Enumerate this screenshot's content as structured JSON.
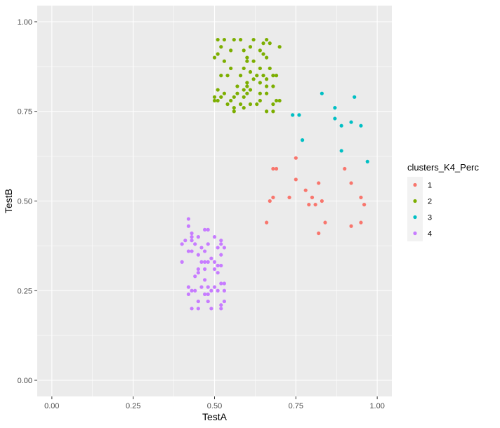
{
  "chart_data": {
    "type": "scatter",
    "title": "",
    "xlabel": "TestA",
    "ylabel": "TestB",
    "xlim": [
      -0.045,
      1.045
    ],
    "ylim": [
      -0.045,
      1.045
    ],
    "x_ticks": [
      0,
      0.25,
      0.5,
      0.75,
      1
    ],
    "x_tick_labels": [
      "0.00",
      "0.25",
      "0.50",
      "0.75",
      "1.00"
    ],
    "y_ticks": [
      0,
      0.25,
      0.5,
      0.75,
      1
    ],
    "y_tick_labels": [
      "0.00",
      "0.25",
      "0.50",
      "0.75",
      "1.00"
    ],
    "grid": true,
    "legend": {
      "title": "clusters_K4_Perc",
      "position": "right"
    },
    "series": [
      {
        "name": "1",
        "color": "#F8766D",
        "points": [
          [
            0.75,
            0.62
          ],
          [
            0.68,
            0.59
          ],
          [
            0.69,
            0.59
          ],
          [
            0.9,
            0.59
          ],
          [
            0.75,
            0.56
          ],
          [
            0.92,
            0.55
          ],
          [
            0.82,
            0.55
          ],
          [
            0.78,
            0.53
          ],
          [
            0.8,
            0.51
          ],
          [
            0.95,
            0.51
          ],
          [
            0.68,
            0.51
          ],
          [
            0.73,
            0.51
          ],
          [
            0.67,
            0.5
          ],
          [
            0.83,
            0.5
          ],
          [
            0.79,
            0.49
          ],
          [
            0.81,
            0.49
          ],
          [
            0.96,
            0.49
          ],
          [
            0.66,
            0.44
          ],
          [
            0.84,
            0.44
          ],
          [
            0.95,
            0.44
          ],
          [
            0.92,
            0.43
          ],
          [
            0.82,
            0.41
          ]
        ]
      },
      {
        "name": "2",
        "color": "#7CAE00",
        "points": [
          [
            0.51,
            0.95
          ],
          [
            0.53,
            0.95
          ],
          [
            0.56,
            0.95
          ],
          [
            0.58,
            0.95
          ],
          [
            0.62,
            0.95
          ],
          [
            0.66,
            0.95
          ],
          [
            0.67,
            0.94
          ],
          [
            0.65,
            0.94
          ],
          [
            0.52,
            0.93
          ],
          [
            0.61,
            0.93
          ],
          [
            0.7,
            0.93
          ],
          [
            0.55,
            0.92
          ],
          [
            0.59,
            0.92
          ],
          [
            0.64,
            0.92
          ],
          [
            0.51,
            0.91
          ],
          [
            0.65,
            0.91
          ],
          [
            0.5,
            0.9
          ],
          [
            0.6,
            0.9
          ],
          [
            0.66,
            0.9
          ],
          [
            0.53,
            0.89
          ],
          [
            0.6,
            0.89
          ],
          [
            0.62,
            0.89
          ],
          [
            0.55,
            0.87
          ],
          [
            0.59,
            0.87
          ],
          [
            0.64,
            0.87
          ],
          [
            0.67,
            0.87
          ],
          [
            0.61,
            0.86
          ],
          [
            0.52,
            0.85
          ],
          [
            0.54,
            0.85
          ],
          [
            0.58,
            0.85
          ],
          [
            0.63,
            0.85
          ],
          [
            0.65,
            0.85
          ],
          [
            0.68,
            0.85
          ],
          [
            0.69,
            0.85
          ],
          [
            0.62,
            0.84
          ],
          [
            0.66,
            0.84
          ],
          [
            0.6,
            0.83
          ],
          [
            0.64,
            0.83
          ],
          [
            0.57,
            0.82
          ],
          [
            0.6,
            0.82
          ],
          [
            0.66,
            0.82
          ],
          [
            0.68,
            0.82
          ],
          [
            0.59,
            0.81
          ],
          [
            0.61,
            0.81
          ],
          [
            0.51,
            0.81
          ],
          [
            0.57,
            0.8
          ],
          [
            0.6,
            0.8
          ],
          [
            0.64,
            0.8
          ],
          [
            0.66,
            0.8
          ],
          [
            0.53,
            0.8
          ],
          [
            0.56,
            0.79
          ],
          [
            0.59,
            0.79
          ],
          [
            0.5,
            0.79
          ],
          [
            0.52,
            0.79
          ],
          [
            0.55,
            0.78
          ],
          [
            0.5,
            0.78
          ],
          [
            0.51,
            0.78
          ],
          [
            0.64,
            0.78
          ],
          [
            0.69,
            0.78
          ],
          [
            0.7,
            0.78
          ],
          [
            0.54,
            0.77
          ],
          [
            0.58,
            0.77
          ],
          [
            0.61,
            0.77
          ],
          [
            0.63,
            0.77
          ],
          [
            0.68,
            0.77
          ],
          [
            0.56,
            0.76
          ],
          [
            0.59,
            0.76
          ],
          [
            0.66,
            0.75
          ],
          [
            0.68,
            0.75
          ],
          [
            0.56,
            0.75
          ]
        ]
      },
      {
        "name": "3",
        "color": "#00BFC4",
        "points": [
          [
            0.83,
            0.8
          ],
          [
            0.93,
            0.79
          ],
          [
            0.87,
            0.76
          ],
          [
            0.74,
            0.74
          ],
          [
            0.76,
            0.74
          ],
          [
            0.87,
            0.73
          ],
          [
            0.92,
            0.72
          ],
          [
            0.89,
            0.71
          ],
          [
            0.95,
            0.71
          ],
          [
            0.77,
            0.67
          ],
          [
            0.89,
            0.64
          ],
          [
            0.97,
            0.61
          ]
        ]
      },
      {
        "name": "4",
        "color": "#C77CFF",
        "points": [
          [
            0.42,
            0.45
          ],
          [
            0.42,
            0.43
          ],
          [
            0.48,
            0.42
          ],
          [
            0.47,
            0.42
          ],
          [
            0.43,
            0.41
          ],
          [
            0.43,
            0.4
          ],
          [
            0.45,
            0.4
          ],
          [
            0.5,
            0.4
          ],
          [
            0.52,
            0.39
          ],
          [
            0.41,
            0.39
          ],
          [
            0.43,
            0.39
          ],
          [
            0.48,
            0.38
          ],
          [
            0.52,
            0.38
          ],
          [
            0.4,
            0.38
          ],
          [
            0.44,
            0.38
          ],
          [
            0.46,
            0.37
          ],
          [
            0.51,
            0.37
          ],
          [
            0.53,
            0.37
          ],
          [
            0.42,
            0.36
          ],
          [
            0.43,
            0.36
          ],
          [
            0.47,
            0.36
          ],
          [
            0.52,
            0.35
          ],
          [
            0.45,
            0.35
          ],
          [
            0.49,
            0.34
          ],
          [
            0.47,
            0.33
          ],
          [
            0.5,
            0.33
          ],
          [
            0.4,
            0.33
          ],
          [
            0.46,
            0.33
          ],
          [
            0.48,
            0.33
          ],
          [
            0.51,
            0.32
          ],
          [
            0.52,
            0.32
          ],
          [
            0.45,
            0.31
          ],
          [
            0.47,
            0.31
          ],
          [
            0.5,
            0.31
          ],
          [
            0.45,
            0.3
          ],
          [
            0.51,
            0.3
          ],
          [
            0.44,
            0.29
          ],
          [
            0.47,
            0.28
          ],
          [
            0.53,
            0.27
          ],
          [
            0.52,
            0.27
          ],
          [
            0.5,
            0.26
          ],
          [
            0.42,
            0.26
          ],
          [
            0.46,
            0.26
          ],
          [
            0.48,
            0.26
          ],
          [
            0.43,
            0.25
          ],
          [
            0.44,
            0.25
          ],
          [
            0.49,
            0.25
          ],
          [
            0.51,
            0.25
          ],
          [
            0.53,
            0.25
          ],
          [
            0.42,
            0.24
          ],
          [
            0.47,
            0.24
          ],
          [
            0.48,
            0.24
          ],
          [
            0.45,
            0.22
          ],
          [
            0.48,
            0.22
          ],
          [
            0.53,
            0.22
          ],
          [
            0.52,
            0.21
          ],
          [
            0.43,
            0.2
          ],
          [
            0.45,
            0.2
          ],
          [
            0.49,
            0.2
          ],
          [
            0.52,
            0.2
          ]
        ]
      }
    ]
  }
}
